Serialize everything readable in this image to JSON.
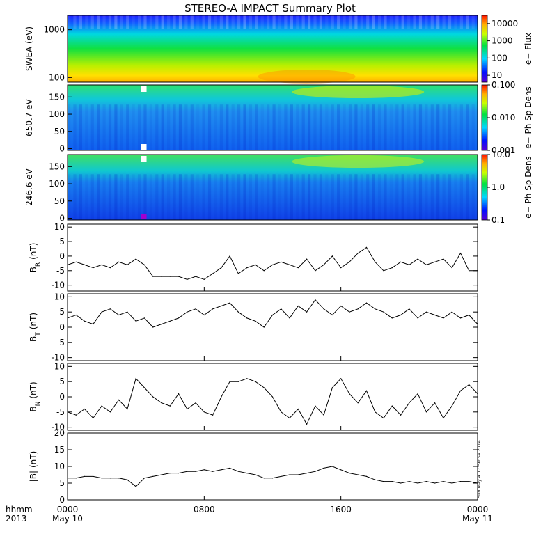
{
  "title": "STEREO-A IMPACT Summary Plot",
  "stamp": "Sun May  4 17:50:34 2014",
  "time_axis": {
    "corner_top": "hhmm",
    "corner_bottom": "2013",
    "ticks": [
      {
        "t": 0,
        "top": "0000",
        "bottom": "May 10"
      },
      {
        "t": 8,
        "top": "0800",
        "bottom": ""
      },
      {
        "t": 16,
        "top": "1600",
        "bottom": ""
      },
      {
        "t": 24,
        "top": "0000",
        "bottom": "May 11"
      }
    ],
    "range_hours": [
      0,
      24
    ]
  },
  "spectrograms": [
    {
      "ylabel": "SWEA (eV)",
      "scale": "log",
      "ylim": [
        80,
        2000
      ],
      "yticks": [
        {
          "v": 100,
          "label": "100"
        },
        {
          "v": 1000,
          "label": "1000"
        }
      ],
      "colorbar": {
        "label": "e− Flux",
        "scale": "log",
        "range": [
          4,
          30000
        ],
        "ticks": [
          {
            "v": 10,
            "label": "10"
          },
          {
            "v": 100,
            "label": "100"
          },
          {
            "v": 1000,
            "label": "1000"
          },
          {
            "v": 10000,
            "label": "10000"
          }
        ]
      }
    },
    {
      "ylabel": "650.7 eV",
      "scale": "linear",
      "ylim": [
        -5,
        185
      ],
      "yticks": [
        {
          "v": 0,
          "label": "0"
        },
        {
          "v": 50,
          "label": "50"
        },
        {
          "v": 100,
          "label": "100"
        },
        {
          "v": 150,
          "label": "150"
        }
      ],
      "colorbar": {
        "label": "e− Ph Sp Dens",
        "scale": "log",
        "range": [
          0.001,
          0.1
        ],
        "ticks": [
          {
            "v": 0.001,
            "label": "0.001"
          },
          {
            "v": 0.01,
            "label": "0.010"
          },
          {
            "v": 0.1,
            "label": "0.100"
          }
        ]
      }
    },
    {
      "ylabel": "246.6 eV",
      "scale": "linear",
      "ylim": [
        -5,
        185
      ],
      "yticks": [
        {
          "v": 0,
          "label": "0"
        },
        {
          "v": 50,
          "label": "50"
        },
        {
          "v": 100,
          "label": "100"
        },
        {
          "v": 150,
          "label": "150"
        }
      ],
      "colorbar": {
        "label": "e− Ph Sp Dens",
        "scale": "log",
        "range": [
          0.1,
          10
        ],
        "ticks": [
          {
            "v": 0.1,
            "label": "0.1"
          },
          {
            "v": 1,
            "label": "1.0"
          },
          {
            "v": 10,
            "label": "10.0"
          }
        ]
      }
    }
  ],
  "chart_data": [
    {
      "type": "line",
      "ylabel": "B",
      "ylabel_sub": "R",
      "ylabel_unit": "(nT)",
      "ylim": [
        -12,
        11
      ],
      "yticks": [
        -10,
        -5,
        0,
        5,
        10
      ],
      "x": [
        0,
        0.5,
        1,
        1.5,
        2,
        2.5,
        3,
        3.5,
        4,
        4.5,
        5,
        5.5,
        6,
        6.5,
        7,
        7.5,
        8,
        8.5,
        9,
        9.5,
        10,
        10.5,
        11,
        11.5,
        12,
        12.5,
        13,
        13.5,
        14,
        14.5,
        15,
        15.5,
        16,
        16.5,
        17,
        17.5,
        18,
        18.5,
        19,
        19.5,
        20,
        20.5,
        21,
        21.5,
        22,
        22.5,
        23,
        23.5,
        24
      ],
      "values": [
        -3,
        -2,
        -3,
        -4,
        -3,
        -4,
        -2,
        -3,
        -1,
        -3,
        -7,
        -7,
        -7,
        -7,
        -8,
        -7,
        -8,
        -6,
        -4,
        0,
        -6,
        -4,
        -3,
        -5,
        -3,
        -2,
        -3,
        -4,
        -1,
        -5,
        -3,
        0,
        -4,
        -2,
        1,
        3,
        -2,
        -5,
        -4,
        -2,
        -3,
        -1,
        -3,
        -2,
        -1,
        -4,
        1,
        -5,
        -5
      ]
    },
    {
      "type": "line",
      "ylabel": "B",
      "ylabel_sub": "T",
      "ylabel_unit": "(nT)",
      "ylim": [
        -11,
        11
      ],
      "yticks": [
        -10,
        -5,
        0,
        5,
        10
      ],
      "x": [
        0,
        0.5,
        1,
        1.5,
        2,
        2.5,
        3,
        3.5,
        4,
        4.5,
        5,
        5.5,
        6,
        6.5,
        7,
        7.5,
        8,
        8.5,
        9,
        9.5,
        10,
        10.5,
        11,
        11.5,
        12,
        12.5,
        13,
        13.5,
        14,
        14.5,
        15,
        15.5,
        16,
        16.5,
        17,
        17.5,
        18,
        18.5,
        19,
        19.5,
        20,
        20.5,
        21,
        21.5,
        22,
        22.5,
        23,
        23.5,
        24
      ],
      "values": [
        3,
        4,
        2,
        1,
        5,
        6,
        4,
        5,
        2,
        3,
        0,
        1,
        2,
        3,
        5,
        6,
        4,
        6,
        7,
        8,
        5,
        3,
        2,
        0,
        4,
        6,
        3,
        7,
        5,
        9,
        6,
        4,
        7,
        5,
        6,
        8,
        6,
        5,
        3,
        4,
        6,
        3,
        5,
        4,
        3,
        5,
        3,
        4,
        1
      ]
    },
    {
      "type": "line",
      "ylabel": "B",
      "ylabel_sub": "N",
      "ylabel_unit": "(nT)",
      "ylim": [
        -11,
        11
      ],
      "yticks": [
        -10,
        -5,
        0,
        5,
        10
      ],
      "x": [
        0,
        0.5,
        1,
        1.5,
        2,
        2.5,
        3,
        3.5,
        4,
        4.5,
        5,
        5.5,
        6,
        6.5,
        7,
        7.5,
        8,
        8.5,
        9,
        9.5,
        10,
        10.5,
        11,
        11.5,
        12,
        12.5,
        13,
        13.5,
        14,
        14.5,
        15,
        15.5,
        16,
        16.5,
        17,
        17.5,
        18,
        18.5,
        19,
        19.5,
        20,
        20.5,
        21,
        21.5,
        22,
        22.5,
        23,
        23.5,
        24
      ],
      "values": [
        -5,
        -6,
        -4,
        -7,
        -3,
        -5,
        -1,
        -4,
        6,
        3,
        0,
        -2,
        -3,
        1,
        -4,
        -2,
        -5,
        -6,
        0,
        5,
        5,
        6,
        5,
        3,
        0,
        -5,
        -7,
        -4,
        -9,
        -3,
        -6,
        3,
        6,
        1,
        -2,
        2,
        -5,
        -7,
        -3,
        -6,
        -2,
        1,
        -5,
        -2,
        -7,
        -3,
        2,
        4,
        1
      ]
    },
    {
      "type": "line",
      "ylabel": "|B|",
      "ylabel_sub": "",
      "ylabel_unit": "(nT)",
      "ylim": [
        0,
        20
      ],
      "yticks": [
        0,
        5,
        10,
        15,
        20
      ],
      "x": [
        0,
        0.5,
        1,
        1.5,
        2,
        2.5,
        3,
        3.5,
        4,
        4.5,
        5,
        5.5,
        6,
        6.5,
        7,
        7.5,
        8,
        8.5,
        9,
        9.5,
        10,
        10.5,
        11,
        11.5,
        12,
        12.5,
        13,
        13.5,
        14,
        14.5,
        15,
        15.5,
        16,
        16.5,
        17,
        17.5,
        18,
        18.5,
        19,
        19.5,
        20,
        20.5,
        21,
        21.5,
        22,
        22.5,
        23,
        23.5,
        24
      ],
      "values": [
        6.5,
        6.5,
        7,
        7,
        6.5,
        6.5,
        6.5,
        6,
        4,
        6.5,
        7,
        7.5,
        8,
        8,
        8.5,
        8.5,
        9,
        8.5,
        9,
        9.5,
        8.5,
        8,
        7.5,
        6.5,
        6.5,
        7,
        7.5,
        7.5,
        8,
        8.5,
        9.5,
        10,
        9,
        8,
        7.5,
        7,
        6,
        5.5,
        5.5,
        5,
        5.5,
        5,
        5.5,
        5,
        5.5,
        5,
        5.5,
        5.5,
        5
      ]
    }
  ]
}
